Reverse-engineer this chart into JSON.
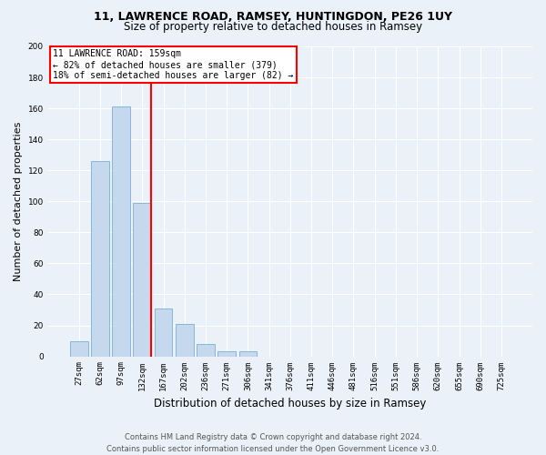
{
  "title1": "11, LAWRENCE ROAD, RAMSEY, HUNTINGDON, PE26 1UY",
  "title2": "Size of property relative to detached houses in Ramsey",
  "xlabel": "Distribution of detached houses by size in Ramsey",
  "ylabel": "Number of detached properties",
  "categories": [
    "27sqm",
    "62sqm",
    "97sqm",
    "132sqm",
    "167sqm",
    "202sqm",
    "236sqm",
    "271sqm",
    "306sqm",
    "341sqm",
    "376sqm",
    "411sqm",
    "446sqm",
    "481sqm",
    "516sqm",
    "551sqm",
    "586sqm",
    "620sqm",
    "655sqm",
    "690sqm",
    "725sqm"
  ],
  "values": [
    10,
    126,
    161,
    99,
    31,
    21,
    8,
    3,
    3,
    0,
    0,
    0,
    0,
    0,
    0,
    0,
    0,
    0,
    0,
    0,
    0
  ],
  "bar_color": "#c5d8ed",
  "bar_edge_color": "#7aafd4",
  "vline_color": "red",
  "vline_x_idx": 3.43,
  "annotation_title": "11 LAWRENCE ROAD: 159sqm",
  "annotation_line1": "← 82% of detached houses are smaller (379)",
  "annotation_line2": "18% of semi-detached houses are larger (82) →",
  "annotation_box_color": "white",
  "annotation_box_edge_color": "red",
  "ylim": [
    0,
    200
  ],
  "yticks": [
    0,
    20,
    40,
    60,
    80,
    100,
    120,
    140,
    160,
    180,
    200
  ],
  "footer1": "Contains HM Land Registry data © Crown copyright and database right 2024.",
  "footer2": "Contains public sector information licensed under the Open Government Licence v3.0.",
  "bg_color": "#eaf1f8",
  "plot_bg_color": "#eaf1f8",
  "grid_color": "white",
  "title1_fontsize": 9,
  "title2_fontsize": 8.5,
  "ylabel_fontsize": 8,
  "xlabel_fontsize": 8.5,
  "tick_fontsize": 6.5,
  "annot_fontsize": 7,
  "footer_fontsize": 6
}
